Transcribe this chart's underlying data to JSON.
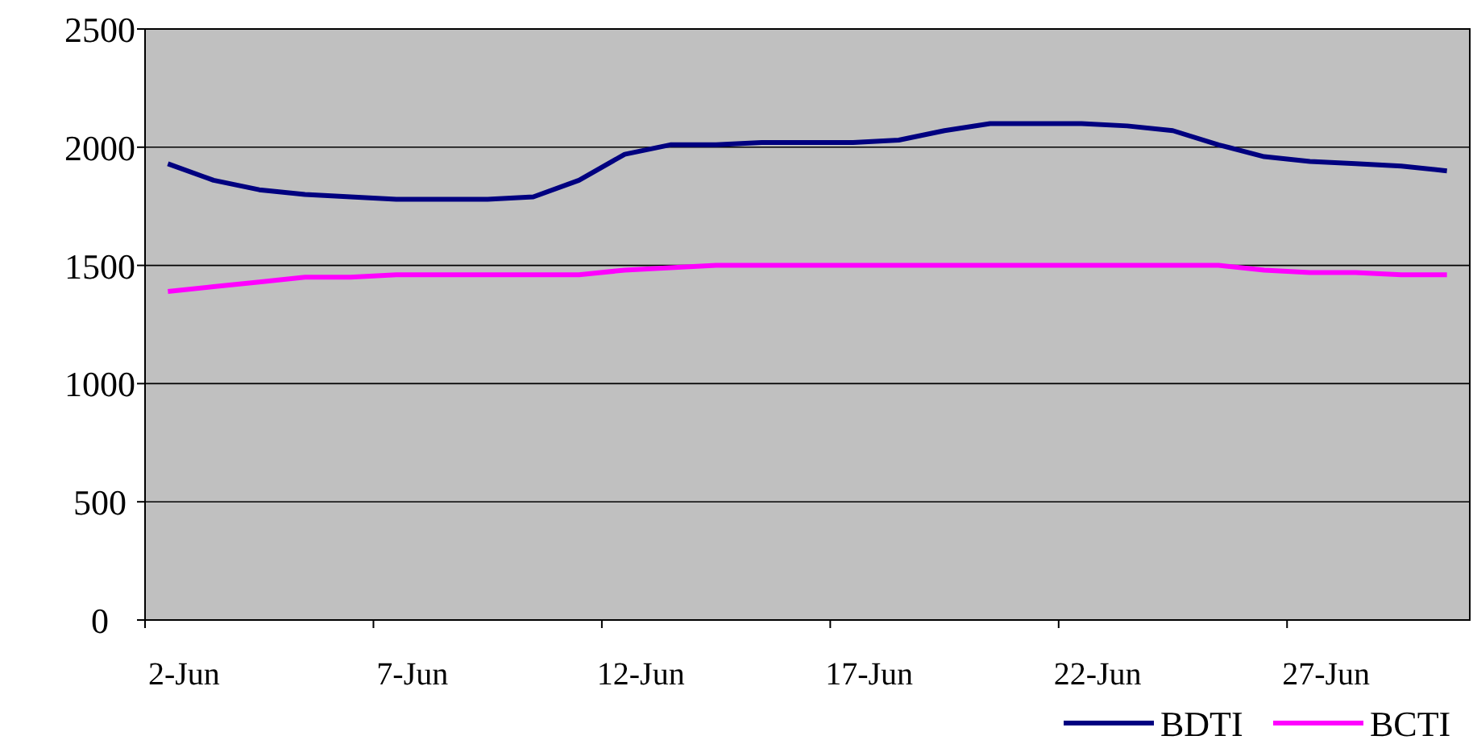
{
  "chart_data": {
    "type": "line",
    "categories": [
      "2-Jun",
      null,
      null,
      null,
      null,
      "7-Jun",
      null,
      null,
      null,
      null,
      "12-Jun",
      null,
      null,
      null,
      null,
      "17-Jun",
      null,
      null,
      null,
      null,
      "22-Jun",
      null,
      null,
      null,
      null,
      "27-Jun",
      null,
      null,
      null
    ],
    "series": [
      {
        "name": "BDTI",
        "color": "#000080",
        "values": [
          1930,
          1860,
          1820,
          1800,
          1790,
          1780,
          1780,
          1780,
          1790,
          1860,
          1970,
          2010,
          2010,
          2020,
          2020,
          2020,
          2030,
          2070,
          2100,
          2100,
          2100,
          2090,
          2070,
          2010,
          1960,
          1940,
          1930,
          1920,
          1900
        ]
      },
      {
        "name": "BCTI",
        "color": "#ff00ff",
        "values": [
          1390,
          1410,
          1430,
          1450,
          1450,
          1460,
          1460,
          1460,
          1460,
          1460,
          1480,
          1490,
          1500,
          1500,
          1500,
          1500,
          1500,
          1500,
          1500,
          1500,
          1500,
          1500,
          1500,
          1500,
          1480,
          1470,
          1470,
          1460,
          1460
        ]
      }
    ],
    "ylim": [
      0,
      2500
    ],
    "yticks": [
      0,
      500,
      1000,
      1500,
      2000,
      2500
    ],
    "grid": "y",
    "legend": "bottom right",
    "marker": "none",
    "line_style": "solid"
  }
}
